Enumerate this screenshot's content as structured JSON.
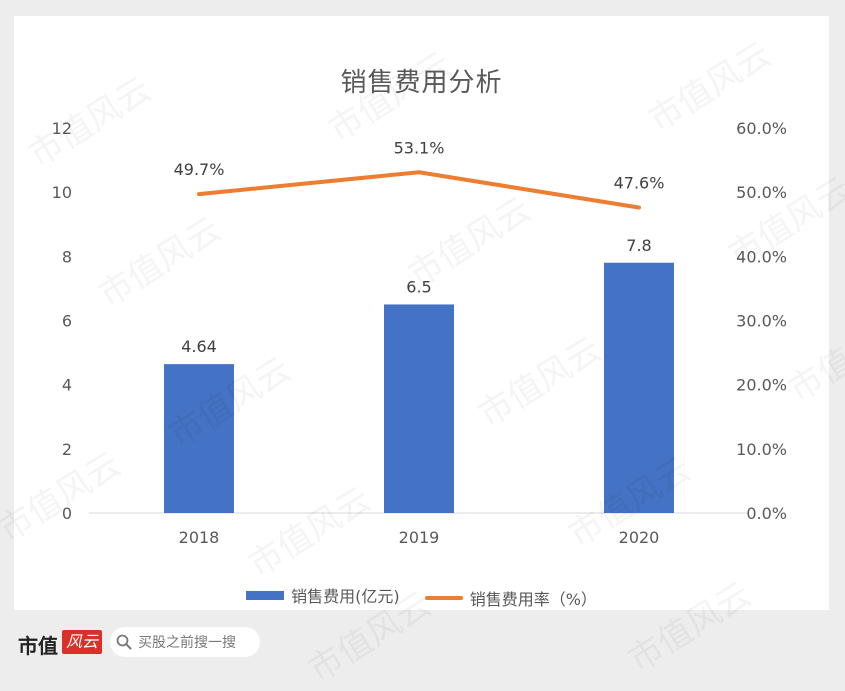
{
  "chart_data": {
    "type": "bar",
    "title": "销售费用分析",
    "categories": [
      "2018",
      "2019",
      "2020"
    ],
    "series": [
      {
        "name": "销售费用(亿元)",
        "type": "bar",
        "axis": "left",
        "values": [
          4.64,
          6.5,
          7.8
        ],
        "labels": [
          "4.64",
          "6.5",
          "7.8"
        ],
        "color": "#4472c4"
      },
      {
        "name": "销售费用率（%）",
        "type": "line",
        "axis": "right",
        "values": [
          49.7,
          53.1,
          47.6
        ],
        "labels": [
          "49.7%",
          "53.1%",
          "47.6%"
        ],
        "color": "#ed7d31"
      }
    ],
    "y_left": {
      "min": 0,
      "max": 12,
      "ticks": [
        "0",
        "2",
        "4",
        "6",
        "8",
        "10",
        "12"
      ]
    },
    "y_right": {
      "min": 0,
      "max": 60,
      "ticks": [
        "0.0%",
        "10.0%",
        "20.0%",
        "30.0%",
        "40.0%",
        "50.0%",
        "60.0%"
      ]
    },
    "grid": false,
    "legend": "bottom"
  },
  "watermark": "市值风云",
  "footer": {
    "brand": "市值",
    "brand_badge": "风云",
    "search_placeholder": "买股之前搜一搜"
  }
}
